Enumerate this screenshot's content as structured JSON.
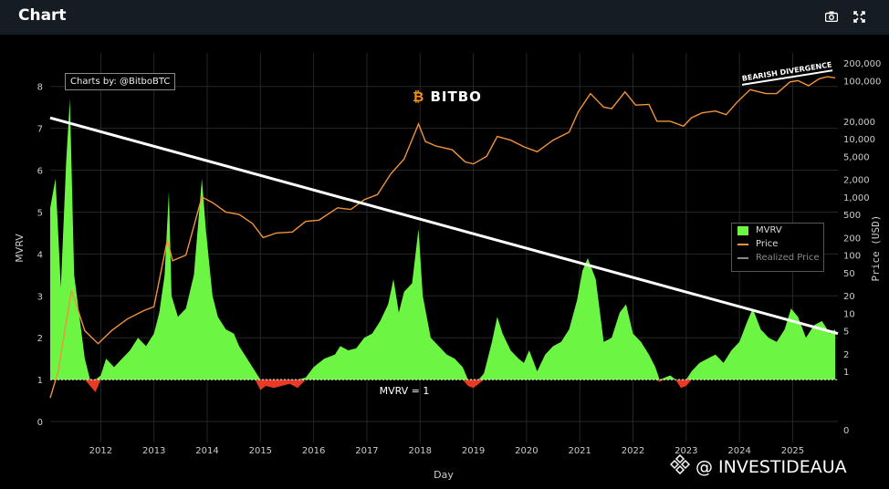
{
  "header": {
    "title": "Chart",
    "icons": [
      "camera-icon",
      "expand-icon"
    ]
  },
  "credit": "Charts by: @BitboBTC",
  "brand": "BITBO",
  "watermark": "@ INVESTIDEAUA",
  "colors": {
    "mvrv_pos": "#6cf542",
    "mvrv_neg": "#e83a25",
    "price": "#f0933a",
    "realized": "#aaaaaa",
    "trend": "#ffffff"
  },
  "chart_data": {
    "type": "area",
    "xlabel": "Day",
    "ylabel_left": "MVRV",
    "ylabel_right": "Price (USD)",
    "x_range": [
      2011.05,
      2025.85
    ],
    "left_ylim": [
      -0.5,
      8.8
    ],
    "left_ticks": [
      0,
      1,
      2,
      3,
      4,
      5,
      6,
      7,
      8
    ],
    "right_tick_labels": [
      "200,000",
      "100,000",
      "20,000",
      "10,000",
      "5,000",
      "2,000",
      "1,000",
      "500",
      "200",
      "100",
      "50",
      "20",
      "10",
      "5",
      "2",
      "1",
      "0"
    ],
    "right_tick_values": [
      200000,
      100000,
      20000,
      10000,
      5000,
      2000,
      1000,
      500,
      200,
      100,
      50,
      20,
      10,
      5,
      2,
      1,
      0.1
    ],
    "right_ylim": [
      0.06,
      300000
    ],
    "x_ticks": [
      2012,
      2013,
      2014,
      2015,
      2016,
      2017,
      2018,
      2019,
      2020,
      2021,
      2022,
      2023,
      2024,
      2025
    ],
    "mvrv_threshold": 1,
    "series": [
      {
        "name": "MVRV",
        "points": [
          [
            2011.05,
            5.1
          ],
          [
            2011.15,
            5.8
          ],
          [
            2011.25,
            3.2
          ],
          [
            2011.35,
            6.2
          ],
          [
            2011.42,
            7.7
          ],
          [
            2011.5,
            3.5
          ],
          [
            2011.6,
            2.5
          ],
          [
            2011.7,
            1.5
          ],
          [
            2011.8,
            0.85
          ],
          [
            2011.9,
            0.7
          ],
          [
            2012.0,
            1.1
          ],
          [
            2012.1,
            1.5
          ],
          [
            2012.25,
            1.3
          ],
          [
            2012.4,
            1.5
          ],
          [
            2012.55,
            1.7
          ],
          [
            2012.7,
            2.0
          ],
          [
            2012.85,
            1.8
          ],
          [
            2013.0,
            2.1
          ],
          [
            2013.1,
            2.6
          ],
          [
            2013.2,
            3.5
          ],
          [
            2013.28,
            5.5
          ],
          [
            2013.33,
            3.0
          ],
          [
            2013.45,
            2.5
          ],
          [
            2013.6,
            2.7
          ],
          [
            2013.75,
            3.5
          ],
          [
            2013.9,
            5.8
          ],
          [
            2013.98,
            4.5
          ],
          [
            2014.1,
            3.0
          ],
          [
            2014.2,
            2.5
          ],
          [
            2014.35,
            2.2
          ],
          [
            2014.5,
            2.1
          ],
          [
            2014.6,
            1.8
          ],
          [
            2014.75,
            1.5
          ],
          [
            2014.9,
            1.2
          ],
          [
            2015.0,
            0.75
          ],
          [
            2015.1,
            0.85
          ],
          [
            2015.25,
            0.8
          ],
          [
            2015.4,
            0.85
          ],
          [
            2015.55,
            0.9
          ],
          [
            2015.7,
            0.8
          ],
          [
            2015.85,
            1.05
          ],
          [
            2016.0,
            1.3
          ],
          [
            2016.2,
            1.5
          ],
          [
            2016.4,
            1.6
          ],
          [
            2016.5,
            1.8
          ],
          [
            2016.65,
            1.7
          ],
          [
            2016.8,
            1.75
          ],
          [
            2016.95,
            2.0
          ],
          [
            2017.1,
            2.1
          ],
          [
            2017.25,
            2.4
          ],
          [
            2017.4,
            2.8
          ],
          [
            2017.5,
            3.4
          ],
          [
            2017.6,
            2.6
          ],
          [
            2017.7,
            3.1
          ],
          [
            2017.85,
            3.3
          ],
          [
            2017.97,
            4.6
          ],
          [
            2018.05,
            3.0
          ],
          [
            2018.2,
            2.0
          ],
          [
            2018.35,
            1.8
          ],
          [
            2018.5,
            1.6
          ],
          [
            2018.65,
            1.5
          ],
          [
            2018.8,
            1.3
          ],
          [
            2018.9,
            0.85
          ],
          [
            2019.0,
            0.8
          ],
          [
            2019.1,
            0.9
          ],
          [
            2019.2,
            1.15
          ],
          [
            2019.35,
            1.9
          ],
          [
            2019.45,
            2.5
          ],
          [
            2019.55,
            2.1
          ],
          [
            2019.7,
            1.7
          ],
          [
            2019.85,
            1.5
          ],
          [
            2019.95,
            1.4
          ],
          [
            2020.05,
            1.7
          ],
          [
            2020.2,
            1.2
          ],
          [
            2020.35,
            1.6
          ],
          [
            2020.5,
            1.8
          ],
          [
            2020.65,
            1.9
          ],
          [
            2020.8,
            2.2
          ],
          [
            2020.95,
            2.9
          ],
          [
            2021.05,
            3.6
          ],
          [
            2021.15,
            3.9
          ],
          [
            2021.3,
            3.4
          ],
          [
            2021.45,
            1.9
          ],
          [
            2021.6,
            2.0
          ],
          [
            2021.75,
            2.6
          ],
          [
            2021.87,
            2.8
          ],
          [
            2022.0,
            2.1
          ],
          [
            2022.15,
            1.9
          ],
          [
            2022.3,
            1.6
          ],
          [
            2022.42,
            1.3
          ],
          [
            2022.5,
            0.95
          ],
          [
            2022.6,
            1.05
          ],
          [
            2022.7,
            1.1
          ],
          [
            2022.8,
            1.0
          ],
          [
            2022.9,
            0.8
          ],
          [
            2023.0,
            0.85
          ],
          [
            2023.1,
            1.2
          ],
          [
            2023.25,
            1.4
          ],
          [
            2023.4,
            1.5
          ],
          [
            2023.55,
            1.6
          ],
          [
            2023.7,
            1.4
          ],
          [
            2023.85,
            1.7
          ],
          [
            2024.0,
            1.9
          ],
          [
            2024.15,
            2.4
          ],
          [
            2024.25,
            2.7
          ],
          [
            2024.4,
            2.2
          ],
          [
            2024.55,
            2.0
          ],
          [
            2024.7,
            1.9
          ],
          [
            2024.85,
            2.2
          ],
          [
            2024.97,
            2.7
          ],
          [
            2025.1,
            2.5
          ],
          [
            2025.25,
            2.0
          ],
          [
            2025.4,
            2.3
          ],
          [
            2025.55,
            2.4
          ],
          [
            2025.7,
            2.1
          ],
          [
            2025.8,
            2.2
          ]
        ]
      },
      {
        "name": "Price",
        "points": [
          [
            2011.05,
            0.35
          ],
          [
            2011.2,
            1.0
          ],
          [
            2011.45,
            25
          ],
          [
            2011.7,
            5
          ],
          [
            2011.95,
            3
          ],
          [
            2012.2,
            5
          ],
          [
            2012.5,
            8
          ],
          [
            2012.8,
            11
          ],
          [
            2013.0,
            13
          ],
          [
            2013.25,
            180
          ],
          [
            2013.35,
            80
          ],
          [
            2013.6,
            100
          ],
          [
            2013.9,
            1000
          ],
          [
            2014.1,
            800
          ],
          [
            2014.35,
            550
          ],
          [
            2014.6,
            500
          ],
          [
            2014.85,
            350
          ],
          [
            2015.05,
            200
          ],
          [
            2015.3,
            240
          ],
          [
            2015.6,
            250
          ],
          [
            2015.85,
            380
          ],
          [
            2016.1,
            400
          ],
          [
            2016.45,
            650
          ],
          [
            2016.7,
            610
          ],
          [
            2016.95,
            900
          ],
          [
            2017.2,
            1100
          ],
          [
            2017.45,
            2500
          ],
          [
            2017.7,
            4500
          ],
          [
            2017.97,
            18000
          ],
          [
            2018.1,
            9000
          ],
          [
            2018.3,
            7500
          ],
          [
            2018.6,
            6500
          ],
          [
            2018.85,
            4000
          ],
          [
            2019.0,
            3700
          ],
          [
            2019.25,
            5000
          ],
          [
            2019.45,
            11000
          ],
          [
            2019.7,
            9500
          ],
          [
            2019.95,
            7300
          ],
          [
            2020.2,
            6000
          ],
          [
            2020.5,
            9500
          ],
          [
            2020.8,
            13000
          ],
          [
            2020.97,
            29000
          ],
          [
            2021.2,
            60000
          ],
          [
            2021.45,
            35000
          ],
          [
            2021.6,
            33000
          ],
          [
            2021.85,
            64000
          ],
          [
            2022.05,
            38000
          ],
          [
            2022.3,
            39000
          ],
          [
            2022.45,
            20000
          ],
          [
            2022.7,
            20000
          ],
          [
            2022.95,
            16500
          ],
          [
            2023.1,
            23000
          ],
          [
            2023.3,
            28000
          ],
          [
            2023.55,
            30000
          ],
          [
            2023.75,
            26000
          ],
          [
            2023.95,
            42000
          ],
          [
            2024.2,
            70000
          ],
          [
            2024.5,
            60000
          ],
          [
            2024.7,
            60000
          ],
          [
            2024.95,
            95000
          ],
          [
            2025.1,
            100000
          ],
          [
            2025.3,
            82000
          ],
          [
            2025.5,
            108000
          ],
          [
            2025.65,
            117000
          ],
          [
            2025.8,
            112000
          ]
        ]
      }
    ],
    "trendline": {
      "from": [
        2011.05,
        7.25
      ],
      "to": [
        2025.85,
        2.1
      ]
    },
    "annotations": {
      "threshold_label": "MVRV = 1",
      "divergence_label": "BEARISH DIVERGENCE"
    },
    "legend": [
      "MVRV",
      "Price",
      "Realized Price"
    ]
  }
}
